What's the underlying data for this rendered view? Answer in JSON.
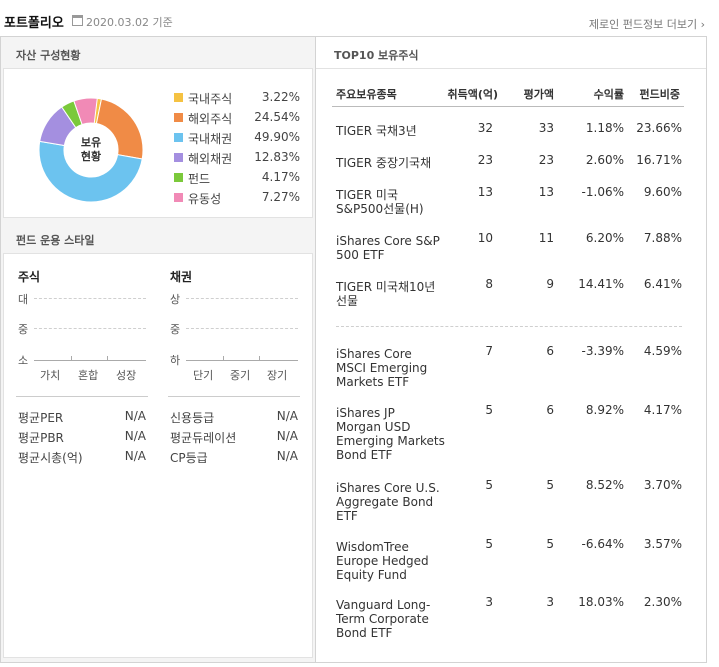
{
  "header": {
    "title": "포트폴리오",
    "date": "2020.03.02 기준",
    "more_link": "제로인 펀드정보 더보기 ›"
  },
  "composition": {
    "title": "자산 구성현황",
    "center_label": "보유\n현황",
    "center_line1": "보유",
    "center_line2": "현황",
    "items": [
      {
        "label": "국내주식",
        "value": "3.22%",
        "pct": 3.22,
        "color": "#f5c242"
      },
      {
        "label": "해외주식",
        "value": "24.54%",
        "pct": 24.54,
        "color": "#f08b46"
      },
      {
        "label": "국내채권",
        "value": "49.90%",
        "pct": 49.9,
        "color": "#6cc3ef"
      },
      {
        "label": "해외채권",
        "value": "12.83%",
        "pct": 12.83,
        "color": "#a48fe0"
      },
      {
        "label": "펀드",
        "value": "4.17%",
        "pct": 4.17,
        "color": "#7bc93b"
      },
      {
        "label": "유동성",
        "value": "7.27%",
        "pct": 7.27,
        "color": "#f18ab6"
      }
    ]
  },
  "style": {
    "title": "펀드 운용 스타일",
    "stock": {
      "title": "주식",
      "y_labels": [
        "대",
        "중",
        "소"
      ],
      "x_labels": [
        "가치",
        "혼합",
        "성장"
      ]
    },
    "bond": {
      "title": "채권",
      "y_labels": [
        "상",
        "중",
        "하"
      ],
      "x_labels": [
        "단기",
        "중기",
        "장기"
      ]
    },
    "stock_metrics": [
      {
        "label": "평균PER",
        "value": "N/A"
      },
      {
        "label": "평균PBR",
        "value": "N/A"
      },
      {
        "label": "평균시총(억)",
        "value": "N/A"
      }
    ],
    "bond_metrics": [
      {
        "label": "신용등급",
        "value": "N/A"
      },
      {
        "label": "평균듀레이션",
        "value": "N/A"
      },
      {
        "label": "CP등급",
        "value": "N/A"
      }
    ]
  },
  "top10": {
    "title": "TOP10 보유주식",
    "columns": [
      "주요보유종목",
      "취득액(억)",
      "평가액",
      "수익률",
      "펀드비중"
    ],
    "rows": [
      {
        "name": [
          "TIGER 국채3년"
        ],
        "cost": "32",
        "value": "33",
        "ret": "1.18%",
        "weight": "23.66%"
      },
      {
        "name": [
          "TIGER 중장기국채"
        ],
        "cost": "23",
        "value": "23",
        "ret": "2.60%",
        "weight": "16.71%"
      },
      {
        "name": [
          "TIGER 미국",
          "S&P500선물(H)"
        ],
        "cost": "13",
        "value": "13",
        "ret": "-1.06%",
        "weight": "9.60%"
      },
      {
        "name": [
          "iShares Core S&P",
          "500 ETF"
        ],
        "cost": "10",
        "value": "11",
        "ret": "6.20%",
        "weight": "7.88%"
      },
      {
        "name": [
          "TIGER 미국채10년",
          "선물"
        ],
        "cost": "8",
        "value": "9",
        "ret": "14.41%",
        "weight": "6.41%"
      },
      {
        "name": [
          "iShares Core",
          "MSCI Emerging",
          "Markets ETF"
        ],
        "cost": "7",
        "value": "6",
        "ret": "-3.39%",
        "weight": "4.59%"
      },
      {
        "name": [
          "iShares JP",
          "Morgan USD",
          "Emerging Markets",
          "Bond ETF"
        ],
        "cost": "5",
        "value": "6",
        "ret": "8.92%",
        "weight": "4.17%"
      },
      {
        "name": [
          "iShares Core U.S.",
          "Aggregate Bond",
          "ETF"
        ],
        "cost": "5",
        "value": "5",
        "ret": "8.52%",
        "weight": "3.70%"
      },
      {
        "name": [
          "WisdomTree",
          "Europe Hedged",
          "Equity Fund"
        ],
        "cost": "5",
        "value": "5",
        "ret": "-6.64%",
        "weight": "3.57%"
      },
      {
        "name": [
          "Vanguard Long-",
          "Term Corporate",
          "Bond ETF"
        ],
        "cost": "3",
        "value": "3",
        "ret": "18.03%",
        "weight": "2.30%"
      }
    ]
  }
}
